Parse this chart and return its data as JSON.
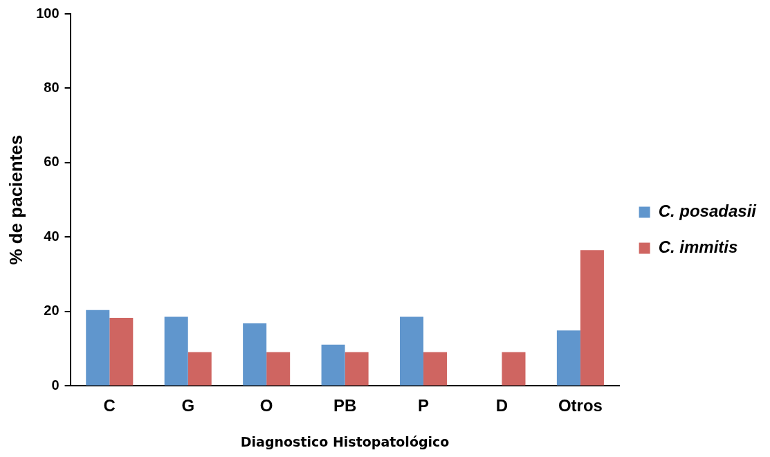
{
  "chart_data": {
    "type": "bar",
    "xlabel": "Diagnostico Histopatológico",
    "ylabel": "% de pacientes",
    "categories": [
      "C",
      "G",
      "O",
      "PB",
      "P",
      "D",
      "Otros"
    ],
    "series": [
      {
        "name": "C. posadasii",
        "color": "#6096cd",
        "values": [
          20.4,
          18.6,
          16.8,
          11.1,
          18.6,
          0,
          14.9
        ]
      },
      {
        "name": "C. immitis",
        "color": "#cf6561",
        "values": [
          18.3,
          9.1,
          9.1,
          9.1,
          9.1,
          9.1,
          36.5
        ]
      }
    ],
    "ylim": [
      0,
      100
    ],
    "yticks": [
      0,
      20,
      40,
      60,
      80,
      100
    ],
    "grid": false,
    "legend": "right"
  }
}
